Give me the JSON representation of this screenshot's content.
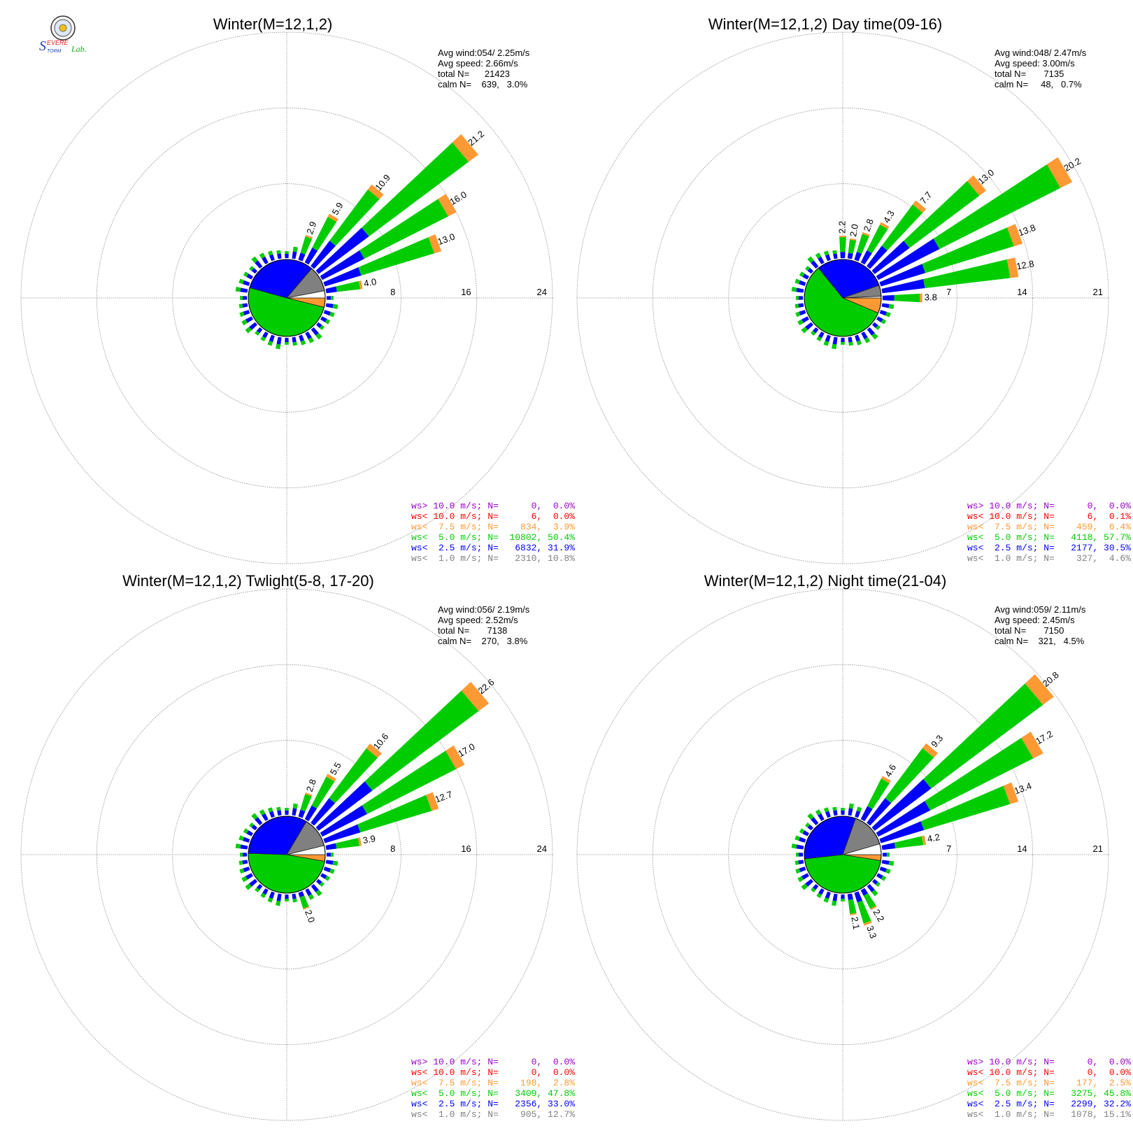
{
  "logo": {
    "text": "SevereStorm Lab.",
    "colors": {
      "s": "#1f3fbf",
      "severe": "#e02020",
      "storm": "#1f3fbf",
      "lab": "#20a020"
    }
  },
  "colors": {
    "gt10": "#9900cc",
    "lt10": "#ff0000",
    "lt75": "#ff9933",
    "lt5": "#00cc00",
    "lt25": "#0000ff",
    "lt1": "#808080",
    "grid": "#777777"
  },
  "chart_data": [
    {
      "type": "windrose",
      "title": "Winter(M=12,1,2)",
      "ring_labels": [
        "8",
        "16",
        "24"
      ],
      "rmax": 24,
      "info": [
        "Avg wind:054/ 2.25m/s",
        "Avg speed: 2.66m/s",
        "total N=      21423",
        "calm N=    639,   3.0%"
      ],
      "legend": [
        {
          "text": "ws> 10.0 m/s; N=      0,  0.0%",
          "color": "gt10"
        },
        {
          "text": "ws< 10.0 m/s; N=      6,  0.0%",
          "color": "lt10"
        },
        {
          "text": "ws<  7.5 m/s; N=    834,  3.9%",
          "color": "lt75"
        },
        {
          "text": "ws<  5.0 m/s; N=  10802, 50.4%",
          "color": "lt5"
        },
        {
          "text": "ws<  2.5 m/s; N=   6832, 31.9%",
          "color": "lt25"
        },
        {
          "text": "ws<  1.0 m/s; N=   2310, 10.8%",
          "color": "lt1"
        }
      ],
      "series": [
        {
          "dir": 20,
          "total": 2.9,
          "label": "2.9"
        },
        {
          "dir": 30,
          "total": 5.9,
          "label": "5.9"
        },
        {
          "dir": 40,
          "total": 10.9,
          "label": "10.9"
        },
        {
          "dir": 50,
          "total": 21.2,
          "label": "21.2"
        },
        {
          "dir": 60,
          "total": 16.0,
          "label": "16.0"
        },
        {
          "dir": 70,
          "total": 13.0,
          "label": "13.0"
        },
        {
          "dir": 80,
          "total": 4.0,
          "label": "4.0"
        }
      ],
      "pie": [
        {
          "cat": "lt1",
          "pct": 10.8
        },
        {
          "cat": "lt75",
          "pct": 3.9
        },
        {
          "cat": "lt5",
          "pct": 50.4
        },
        {
          "cat": "lt25",
          "pct": 31.9
        },
        {
          "cat": "calm",
          "pct": 3.0
        }
      ]
    },
    {
      "type": "windrose",
      "title": "Winter(M=12,1,2) Day time(09-16)",
      "ring_labels": [
        "7",
        "14",
        "21"
      ],
      "rmax": 21,
      "info": [
        "Avg wind:048/ 2.47m/s",
        "Avg speed: 3.00m/s",
        "total N=       7135",
        "calm N=     48,   0.7%"
      ],
      "legend": [
        {
          "text": "ws> 10.0 m/s; N=      0,  0.0%",
          "color": "gt10"
        },
        {
          "text": "ws< 10.0 m/s; N=      6,  0.1%",
          "color": "lt10"
        },
        {
          "text": "ws<  7.5 m/s; N=    459,  6.4%",
          "color": "lt75"
        },
        {
          "text": "ws<  5.0 m/s; N=   4118, 57.7%",
          "color": "lt5"
        },
        {
          "text": "ws<  2.5 m/s; N=   2177, 30.5%",
          "color": "lt25"
        },
        {
          "text": "ws<  1.0 m/s; N=    327,  4.6%",
          "color": "lt1"
        }
      ],
      "series": [
        {
          "dir": 0,
          "total": 2.2,
          "label": "2.2"
        },
        {
          "dir": 10,
          "total": 2.0,
          "label": "2.0"
        },
        {
          "dir": 20,
          "total": 2.8,
          "label": "2.8"
        },
        {
          "dir": 30,
          "total": 4.3,
          "label": "4.3"
        },
        {
          "dir": 40,
          "total": 7.7,
          "label": "7.7"
        },
        {
          "dir": 50,
          "total": 13.0,
          "label": "13.0"
        },
        {
          "dir": 60,
          "total": 20.2,
          "label": "20.2"
        },
        {
          "dir": 70,
          "total": 13.8,
          "label": "13.8"
        },
        {
          "dir": 80,
          "total": 12.8,
          "label": "12.8"
        },
        {
          "dir": 90,
          "total": 3.8,
          "label": "3.8"
        }
      ],
      "pie": [
        {
          "cat": "lt1",
          "pct": 4.6
        },
        {
          "cat": "lt75",
          "pct": 6.4
        },
        {
          "cat": "lt5",
          "pct": 57.7
        },
        {
          "cat": "lt25",
          "pct": 30.5
        },
        {
          "cat": "calm",
          "pct": 0.7
        }
      ]
    },
    {
      "type": "windrose",
      "title": "Winter(M=12,1,2) Twlight(5-8, 17-20)",
      "ring_labels": [
        "8",
        "16",
        "24"
      ],
      "rmax": 24,
      "info": [
        "Avg wind:056/ 2.19m/s",
        "Avg speed: 2.52m/s",
        "total N=       7138",
        "calm N=    270,   3.8%"
      ],
      "legend": [
        {
          "text": "ws> 10.0 m/s; N=      0,  0.0%",
          "color": "gt10"
        },
        {
          "text": "ws< 10.0 m/s; N=      0,  0.0%",
          "color": "lt10"
        },
        {
          "text": "ws<  7.5 m/s; N=    198,  2.8%",
          "color": "lt75"
        },
        {
          "text": "ws<  5.0 m/s; N=   3409, 47.8%",
          "color": "lt5"
        },
        {
          "text": "ws<  2.5 m/s; N=   2356, 33.0%",
          "color": "lt25"
        },
        {
          "text": "ws<  1.0 m/s; N=    905, 12.7%",
          "color": "lt1"
        }
      ],
      "series": [
        {
          "dir": 20,
          "total": 2.8,
          "label": "2.8"
        },
        {
          "dir": 30,
          "total": 5.5,
          "label": "5.5"
        },
        {
          "dir": 40,
          "total": 10.6,
          "label": "10.6"
        },
        {
          "dir": 50,
          "total": 22.6,
          "label": "22.6"
        },
        {
          "dir": 60,
          "total": 17.0,
          "label": "17.0"
        },
        {
          "dir": 70,
          "total": 12.7,
          "label": "12.7"
        },
        {
          "dir": 80,
          "total": 3.9,
          "label": "3.9"
        },
        {
          "dir": 160,
          "total": 2.0,
          "label": "2.0"
        }
      ],
      "pie": [
        {
          "cat": "lt1",
          "pct": 12.7
        },
        {
          "cat": "lt75",
          "pct": 2.8
        },
        {
          "cat": "lt5",
          "pct": 47.8
        },
        {
          "cat": "lt25",
          "pct": 33.0
        },
        {
          "cat": "calm",
          "pct": 3.8
        }
      ]
    },
    {
      "type": "windrose",
      "title": "Winter(M=12,1,2) Night time(21-04)",
      "ring_labels": [
        "7",
        "14",
        "21"
      ],
      "rmax": 21,
      "info": [
        "Avg wind:059/ 2.11m/s",
        "Avg speed: 2.45m/s",
        "total N=       7150",
        "calm N=    321,   4.5%"
      ],
      "legend": [
        {
          "text": "ws> 10.0 m/s; N=      0,  0.0%",
          "color": "gt10"
        },
        {
          "text": "ws< 10.0 m/s; N=      0,  0.0%",
          "color": "lt10"
        },
        {
          "text": "ws<  7.5 m/s; N=    177,  2.5%",
          "color": "lt75"
        },
        {
          "text": "ws<  5.0 m/s; N=   3275, 45.8%",
          "color": "lt5"
        },
        {
          "text": "ws<  2.5 m/s; N=   2299, 32.2%",
          "color": "lt25"
        },
        {
          "text": "ws<  1.0 m/s; N=   1078, 15.1%",
          "color": "lt1"
        }
      ],
      "series": [
        {
          "dir": 30,
          "total": 4.6,
          "label": "4.6"
        },
        {
          "dir": 40,
          "total": 9.3,
          "label": "9.3"
        },
        {
          "dir": 50,
          "total": 20.8,
          "label": "20.8"
        },
        {
          "dir": 60,
          "total": 17.2,
          "label": "17.2"
        },
        {
          "dir": 70,
          "total": 13.4,
          "label": "13.4"
        },
        {
          "dir": 80,
          "total": 4.2,
          "label": "4.2"
        },
        {
          "dir": 150,
          "total": 2.2,
          "label": "2.2"
        },
        {
          "dir": 160,
          "total": 3.3,
          "label": "3.3"
        },
        {
          "dir": 170,
          "total": 2.1,
          "label": "2.1"
        }
      ],
      "pie": [
        {
          "cat": "lt1",
          "pct": 15.1
        },
        {
          "cat": "lt75",
          "pct": 2.5
        },
        {
          "cat": "lt5",
          "pct": 45.8
        },
        {
          "cat": "lt25",
          "pct": 32.2
        },
        {
          "cat": "calm",
          "pct": 4.5
        }
      ]
    }
  ]
}
